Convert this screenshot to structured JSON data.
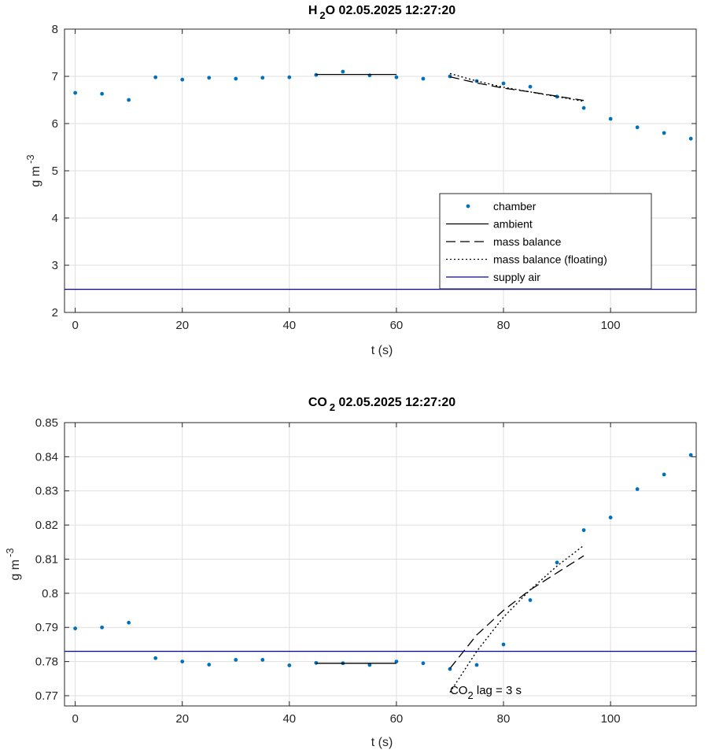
{
  "chart_data": [
    {
      "type": "scatter",
      "title_main": "H",
      "title_sub": "2",
      "title_rest": "O  02.05.2025 12:27:20",
      "xlabel": "t (s)",
      "ylabel_main": "g m",
      "ylabel_sup": "-3",
      "xlim": [
        -2,
        116
      ],
      "ylim": [
        2,
        8
      ],
      "xticks": [
        0,
        20,
        40,
        60,
        80,
        100
      ],
      "yticks": [
        2,
        3,
        4,
        5,
        6,
        7,
        8
      ],
      "ytick_labels": [
        "2",
        "3",
        "4",
        "5",
        "6",
        "7",
        "8"
      ],
      "grid": true,
      "legend_position": "lower-right",
      "legend": [
        "chamber",
        "ambient",
        "mass balance",
        "mass balance (floating)",
        "supply air"
      ],
      "series": [
        {
          "name": "chamber",
          "style": "points",
          "color": "#0072BD",
          "x": [
            0,
            5,
            10,
            15,
            20,
            25,
            30,
            35,
            40,
            45,
            50,
            55,
            60,
            65,
            70,
            75,
            80,
            85,
            90,
            95,
            100,
            105,
            110,
            115
          ],
          "y": [
            6.65,
            6.63,
            6.5,
            6.98,
            6.93,
            6.97,
            6.95,
            6.97,
            6.98,
            7.03,
            7.1,
            7.02,
            6.98,
            6.95,
            7.0,
            6.9,
            6.85,
            6.78,
            6.57,
            6.33,
            6.1,
            5.92,
            5.8,
            5.68
          ]
        },
        {
          "name": "ambient",
          "style": "solid",
          "color": "#000000",
          "x": [
            45,
            60
          ],
          "y": [
            7.04,
            7.04
          ]
        },
        {
          "name": "mass balance",
          "style": "dash",
          "color": "#000000",
          "x": [
            70,
            75,
            80,
            85,
            90,
            95
          ],
          "y": [
            6.99,
            6.86,
            6.75,
            6.67,
            6.58,
            6.49
          ]
        },
        {
          "name": "mass balance (floating)",
          "style": "dot",
          "color": "#000000",
          "x": [
            70,
            75,
            80,
            85,
            90,
            95
          ],
          "y": [
            7.06,
            6.9,
            6.77,
            6.67,
            6.57,
            6.47
          ]
        },
        {
          "name": "supply air",
          "style": "solid",
          "color": "#0000CC",
          "x": [
            -2,
            116
          ],
          "y": [
            2.49,
            2.49
          ]
        }
      ]
    },
    {
      "type": "scatter",
      "title_main": "CO",
      "title_sub": "2",
      "title_rest": "  02.05.2025 12:27:20",
      "xlabel": "t (s)",
      "ylabel_main": "g m",
      "ylabel_sup": "-3",
      "xlim": [
        -2,
        116
      ],
      "ylim": [
        0.767,
        0.85
      ],
      "xticks": [
        0,
        20,
        40,
        60,
        80,
        100
      ],
      "yticks": [
        0.77,
        0.78,
        0.79,
        0.8,
        0.81,
        0.82,
        0.83,
        0.84,
        0.85
      ],
      "ytick_labels": [
        "0.77",
        "0.78",
        "0.79",
        "0.8",
        "0.81",
        "0.82",
        "0.83",
        "0.84",
        "0.85"
      ],
      "grid": true,
      "annotation": {
        "main": "CO",
        "sub": "2",
        "rest": " lag = 3 s",
        "x": 70,
        "y": 0.7705
      },
      "series": [
        {
          "name": "chamber",
          "style": "points",
          "color": "#0072BD",
          "x": [
            0,
            5,
            10,
            15,
            20,
            25,
            30,
            35,
            40,
            45,
            50,
            55,
            60,
            65,
            70,
            75,
            80,
            85,
            90,
            95,
            100,
            105,
            110,
            115
          ],
          "y": [
            0.7897,
            0.79,
            0.7914,
            0.781,
            0.78,
            0.7791,
            0.7805,
            0.7805,
            0.7789,
            0.7796,
            0.7795,
            0.779,
            0.78,
            0.7795,
            0.7778,
            0.779,
            0.785,
            0.798,
            0.809,
            0.8185,
            0.8222,
            0.8305,
            0.8348,
            0.8405
          ]
        },
        {
          "name": "ambient",
          "style": "solid",
          "color": "#000000",
          "x": [
            45,
            60
          ],
          "y": [
            0.7795,
            0.7795
          ]
        },
        {
          "name": "mass balance",
          "style": "dash",
          "color": "#000000",
          "x": [
            70,
            75,
            80,
            85,
            90,
            95
          ],
          "y": [
            0.778,
            0.7878,
            0.795,
            0.801,
            0.806,
            0.811
          ]
        },
        {
          "name": "mass balance (floating)",
          "style": "dot",
          "color": "#000000",
          "x": [
            70,
            75,
            80,
            85,
            90,
            95
          ],
          "y": [
            0.771,
            0.783,
            0.793,
            0.801,
            0.808,
            0.814
          ]
        },
        {
          "name": "supply air",
          "style": "solid",
          "color": "#0000CC",
          "x": [
            -2,
            116
          ],
          "y": [
            0.783,
            0.783
          ]
        }
      ]
    }
  ]
}
